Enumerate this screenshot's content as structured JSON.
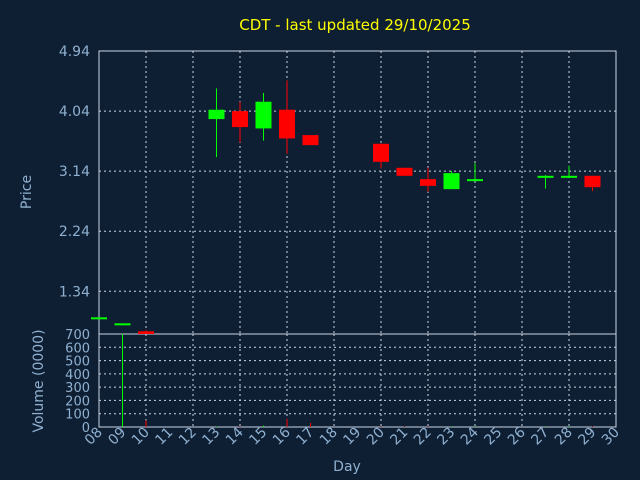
{
  "chart_data": {
    "type": "candlestick",
    "title": "CDT - last updated 29/10/2025",
    "xlabel": "Day",
    "price_panel": {
      "ylabel": "Price",
      "ylim": [
        0.7,
        4.94
      ],
      "yticks": [
        1.34,
        2.24,
        3.14,
        4.04,
        4.94
      ],
      "ytick_labels": [
        "1.34",
        "2.24",
        "3.14",
        "4.04",
        "4.94"
      ]
    },
    "volume_panel": {
      "ylabel": "Volume (0000)",
      "ylim": [
        0,
        700
      ],
      "yticks": [
        0,
        100,
        200,
        300,
        400,
        500,
        600,
        700
      ],
      "ytick_labels": [
        "0",
        "100",
        "200",
        "300",
        "400",
        "500",
        "600",
        "700"
      ]
    },
    "x_range": [
      8,
      30
    ],
    "xtick_labels": [
      "08",
      "09",
      "10",
      "11",
      "12",
      "13",
      "14",
      "15",
      "16",
      "17",
      "18",
      "19",
      "20",
      "21",
      "22",
      "23",
      "24",
      "25",
      "26",
      "27",
      "28",
      "29",
      "30"
    ],
    "up_color": "#00ff00",
    "down_color": "#ff0000",
    "grid": true,
    "candles": [
      {
        "day": 8,
        "open": 0.95,
        "high": 0.95,
        "low": 0.95,
        "close": 0.95,
        "volume": 0
      },
      {
        "day": 9,
        "open": 0.86,
        "high": 0.86,
        "low": 0.86,
        "close": 0.86,
        "volume": 700
      },
      {
        "day": 10,
        "open": 0.74,
        "high": 0.76,
        "low": 0.7,
        "close": 0.7,
        "volume": 50
      },
      {
        "day": 13,
        "open": 3.92,
        "high": 4.38,
        "low": 3.35,
        "close": 4.06,
        "volume": 5
      },
      {
        "day": 14,
        "open": 4.04,
        "high": 4.18,
        "low": 3.57,
        "close": 3.8,
        "volume": 5
      },
      {
        "day": 15,
        "open": 3.78,
        "high": 4.31,
        "low": 3.6,
        "close": 4.18,
        "volume": 10
      },
      {
        "day": 16,
        "open": 4.06,
        "high": 4.5,
        "low": 3.4,
        "close": 3.63,
        "volume": 60
      },
      {
        "day": 17,
        "open": 3.68,
        "high": 3.68,
        "low": 3.53,
        "close": 3.53,
        "volume": 30
      },
      {
        "day": 20,
        "open": 3.55,
        "high": 3.55,
        "low": 3.18,
        "close": 3.28,
        "volume": 5
      },
      {
        "day": 21,
        "open": 3.19,
        "high": 3.19,
        "low": 3.07,
        "close": 3.07,
        "volume": 5
      },
      {
        "day": 22,
        "open": 3.02,
        "high": 3.19,
        "low": 2.83,
        "close": 2.92,
        "volume": 5
      },
      {
        "day": 23,
        "open": 2.87,
        "high": 3.14,
        "low": 2.87,
        "close": 3.11,
        "volume": 5
      },
      {
        "day": 24,
        "open": 3.01,
        "high": 3.26,
        "low": 3.01,
        "close": 3.02,
        "volume": 5
      },
      {
        "day": 27,
        "open": 3.06,
        "high": 3.08,
        "low": 2.88,
        "close": 3.07,
        "volume": 5
      },
      {
        "day": 28,
        "open": 3.06,
        "high": 3.22,
        "low": 3.06,
        "close": 3.07,
        "volume": 5
      },
      {
        "day": 29,
        "open": 3.07,
        "high": 3.07,
        "low": 2.84,
        "close": 2.9,
        "volume": 5
      }
    ]
  }
}
